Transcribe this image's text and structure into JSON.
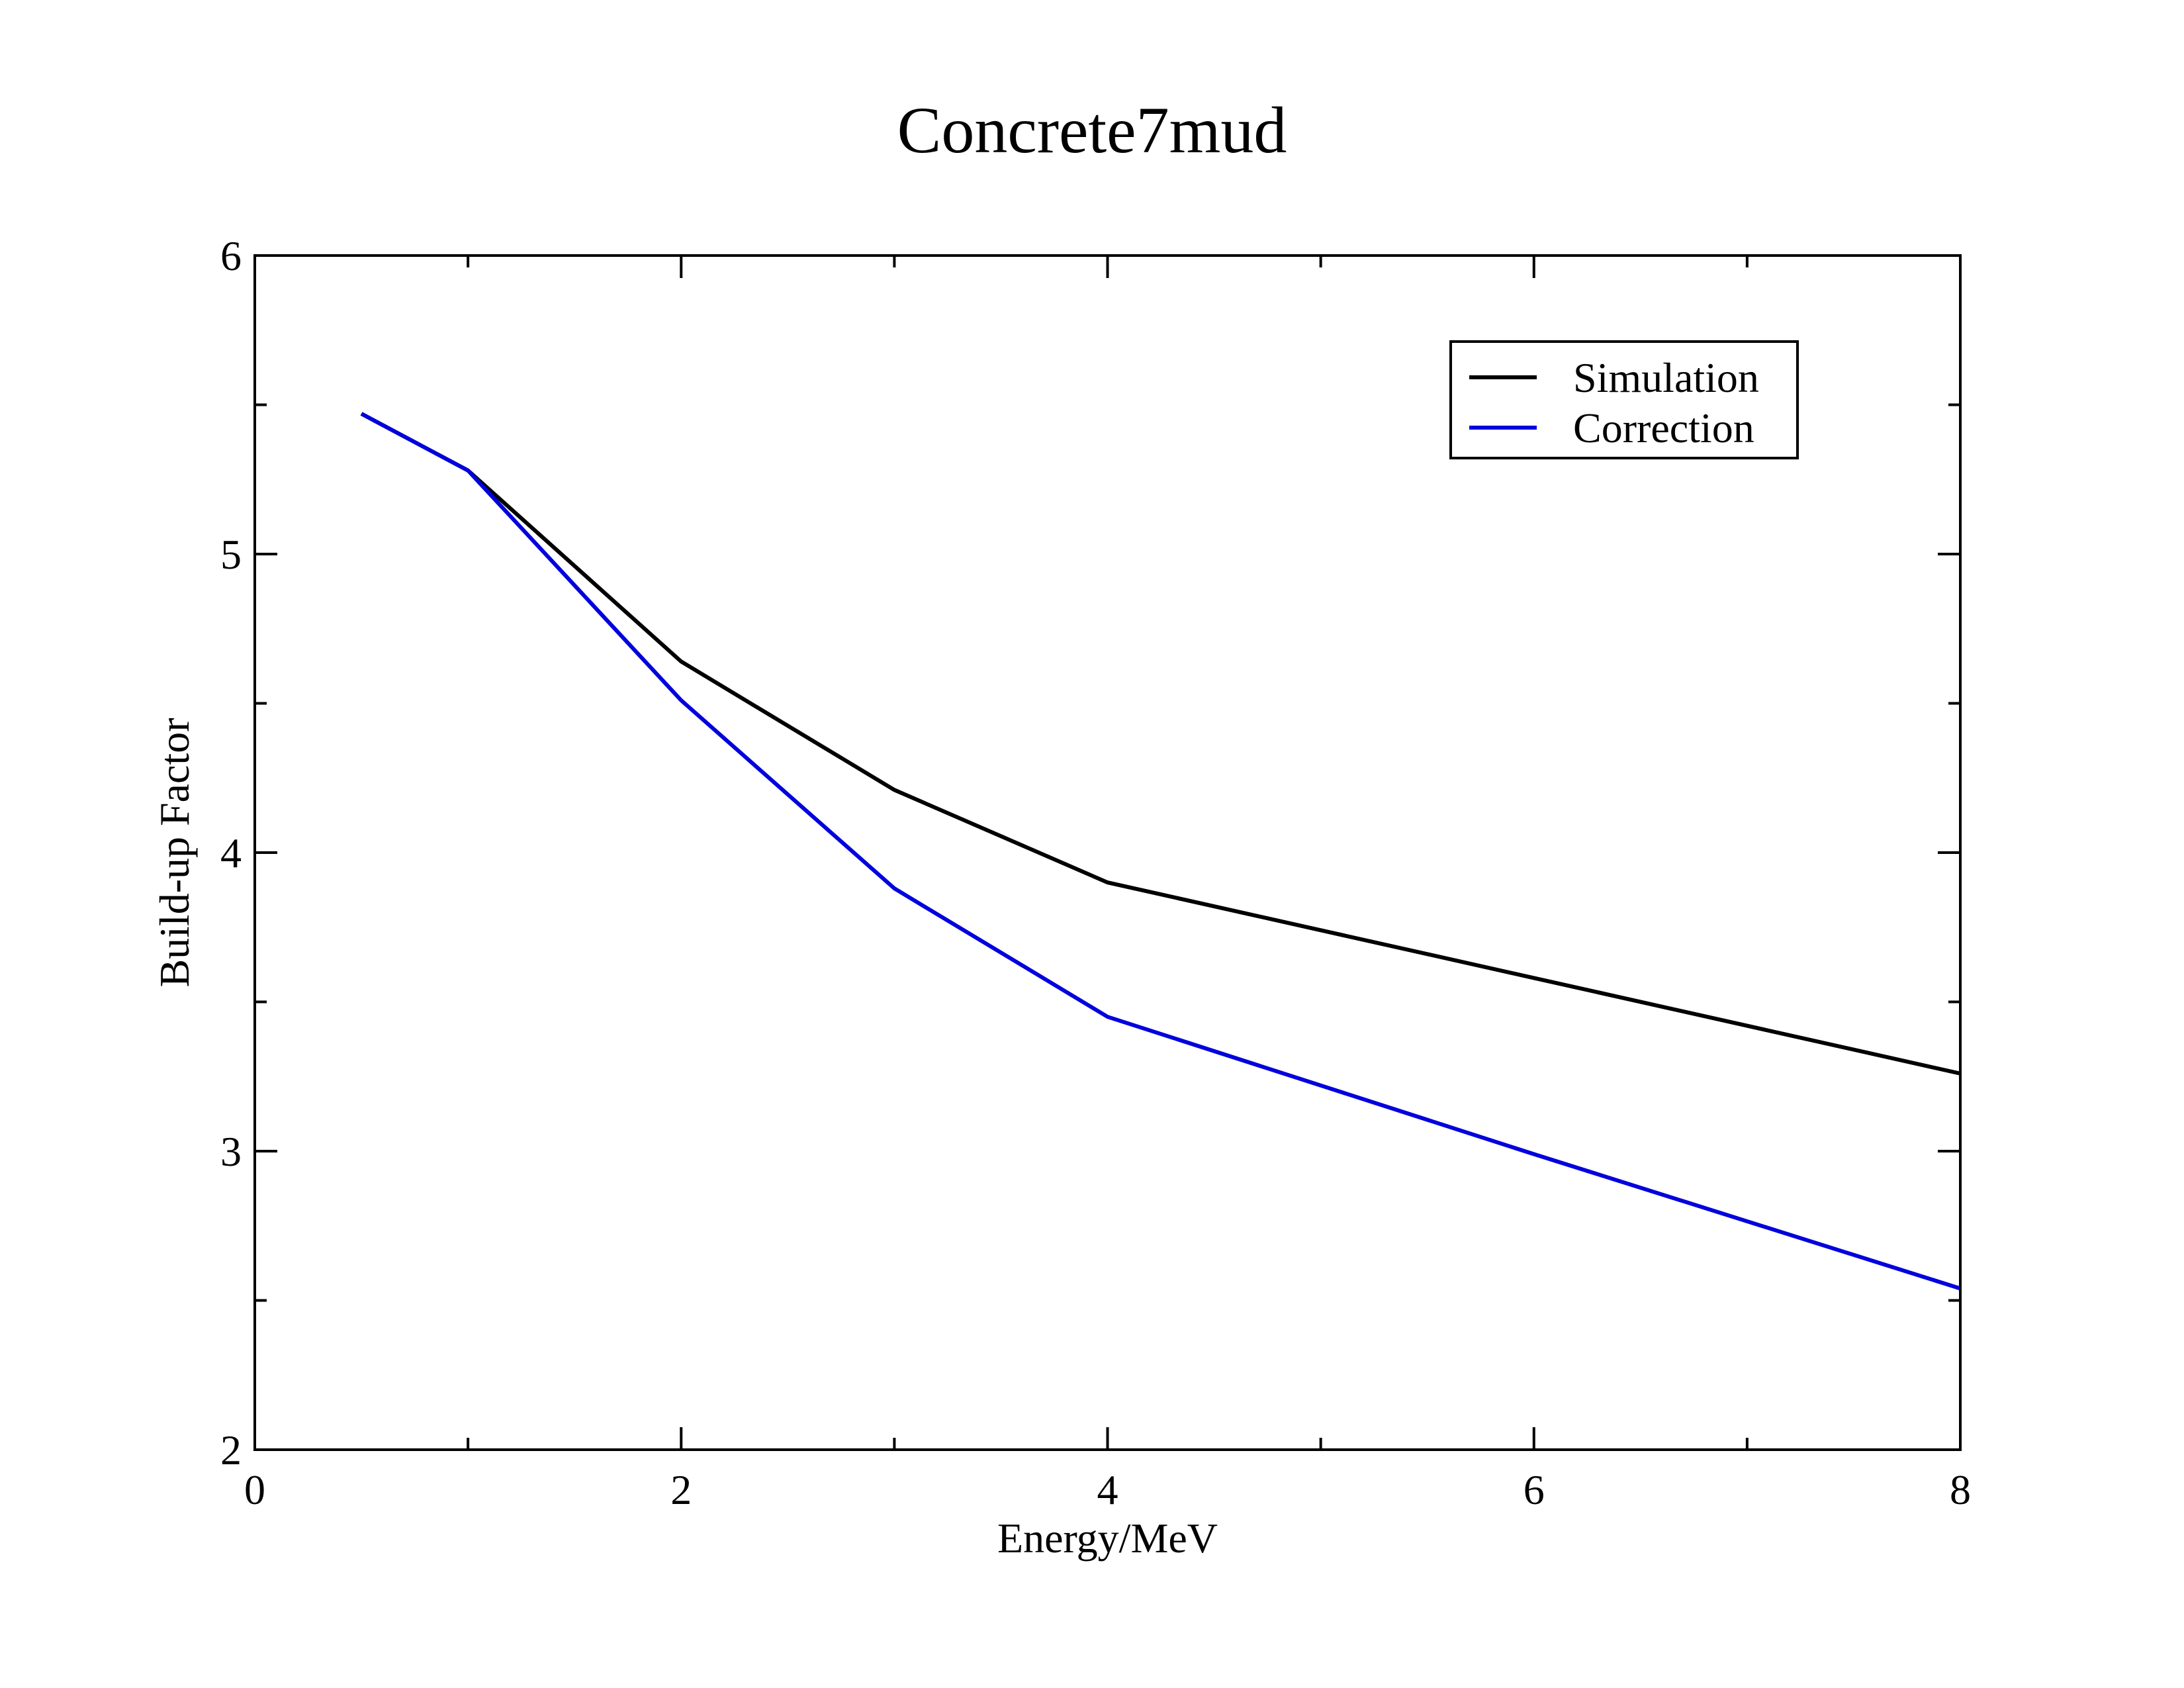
{
  "chart_data": {
    "type": "line",
    "title": "Concrete7mud",
    "xlabel": "Energy/MeV",
    "ylabel": "Build-up Factor",
    "xlim": [
      0,
      8
    ],
    "ylim": [
      2,
      6
    ],
    "x_ticks": [
      0,
      2,
      4,
      6,
      8
    ],
    "x_minor_ticks": [
      1,
      3,
      5,
      7
    ],
    "y_ticks": [
      2,
      3,
      4,
      5,
      6
    ],
    "y_minor_ticks": [
      2.5,
      3.5,
      4.5,
      5.5
    ],
    "grid": false,
    "legend_position": "top-right",
    "series": [
      {
        "name": "Simulation",
        "color": "#000000",
        "x": [
          0.5,
          1,
          2,
          3,
          4,
          6,
          8
        ],
        "y": [
          5.47,
          5.28,
          4.64,
          4.21,
          3.9,
          3.58,
          3.26
        ]
      },
      {
        "name": "Correction",
        "color": "#0000dd",
        "x": [
          0.5,
          1,
          2,
          3,
          4,
          6,
          8
        ],
        "y": [
          5.47,
          5.28,
          4.51,
          3.88,
          3.45,
          2.99,
          2.54
        ]
      }
    ]
  }
}
